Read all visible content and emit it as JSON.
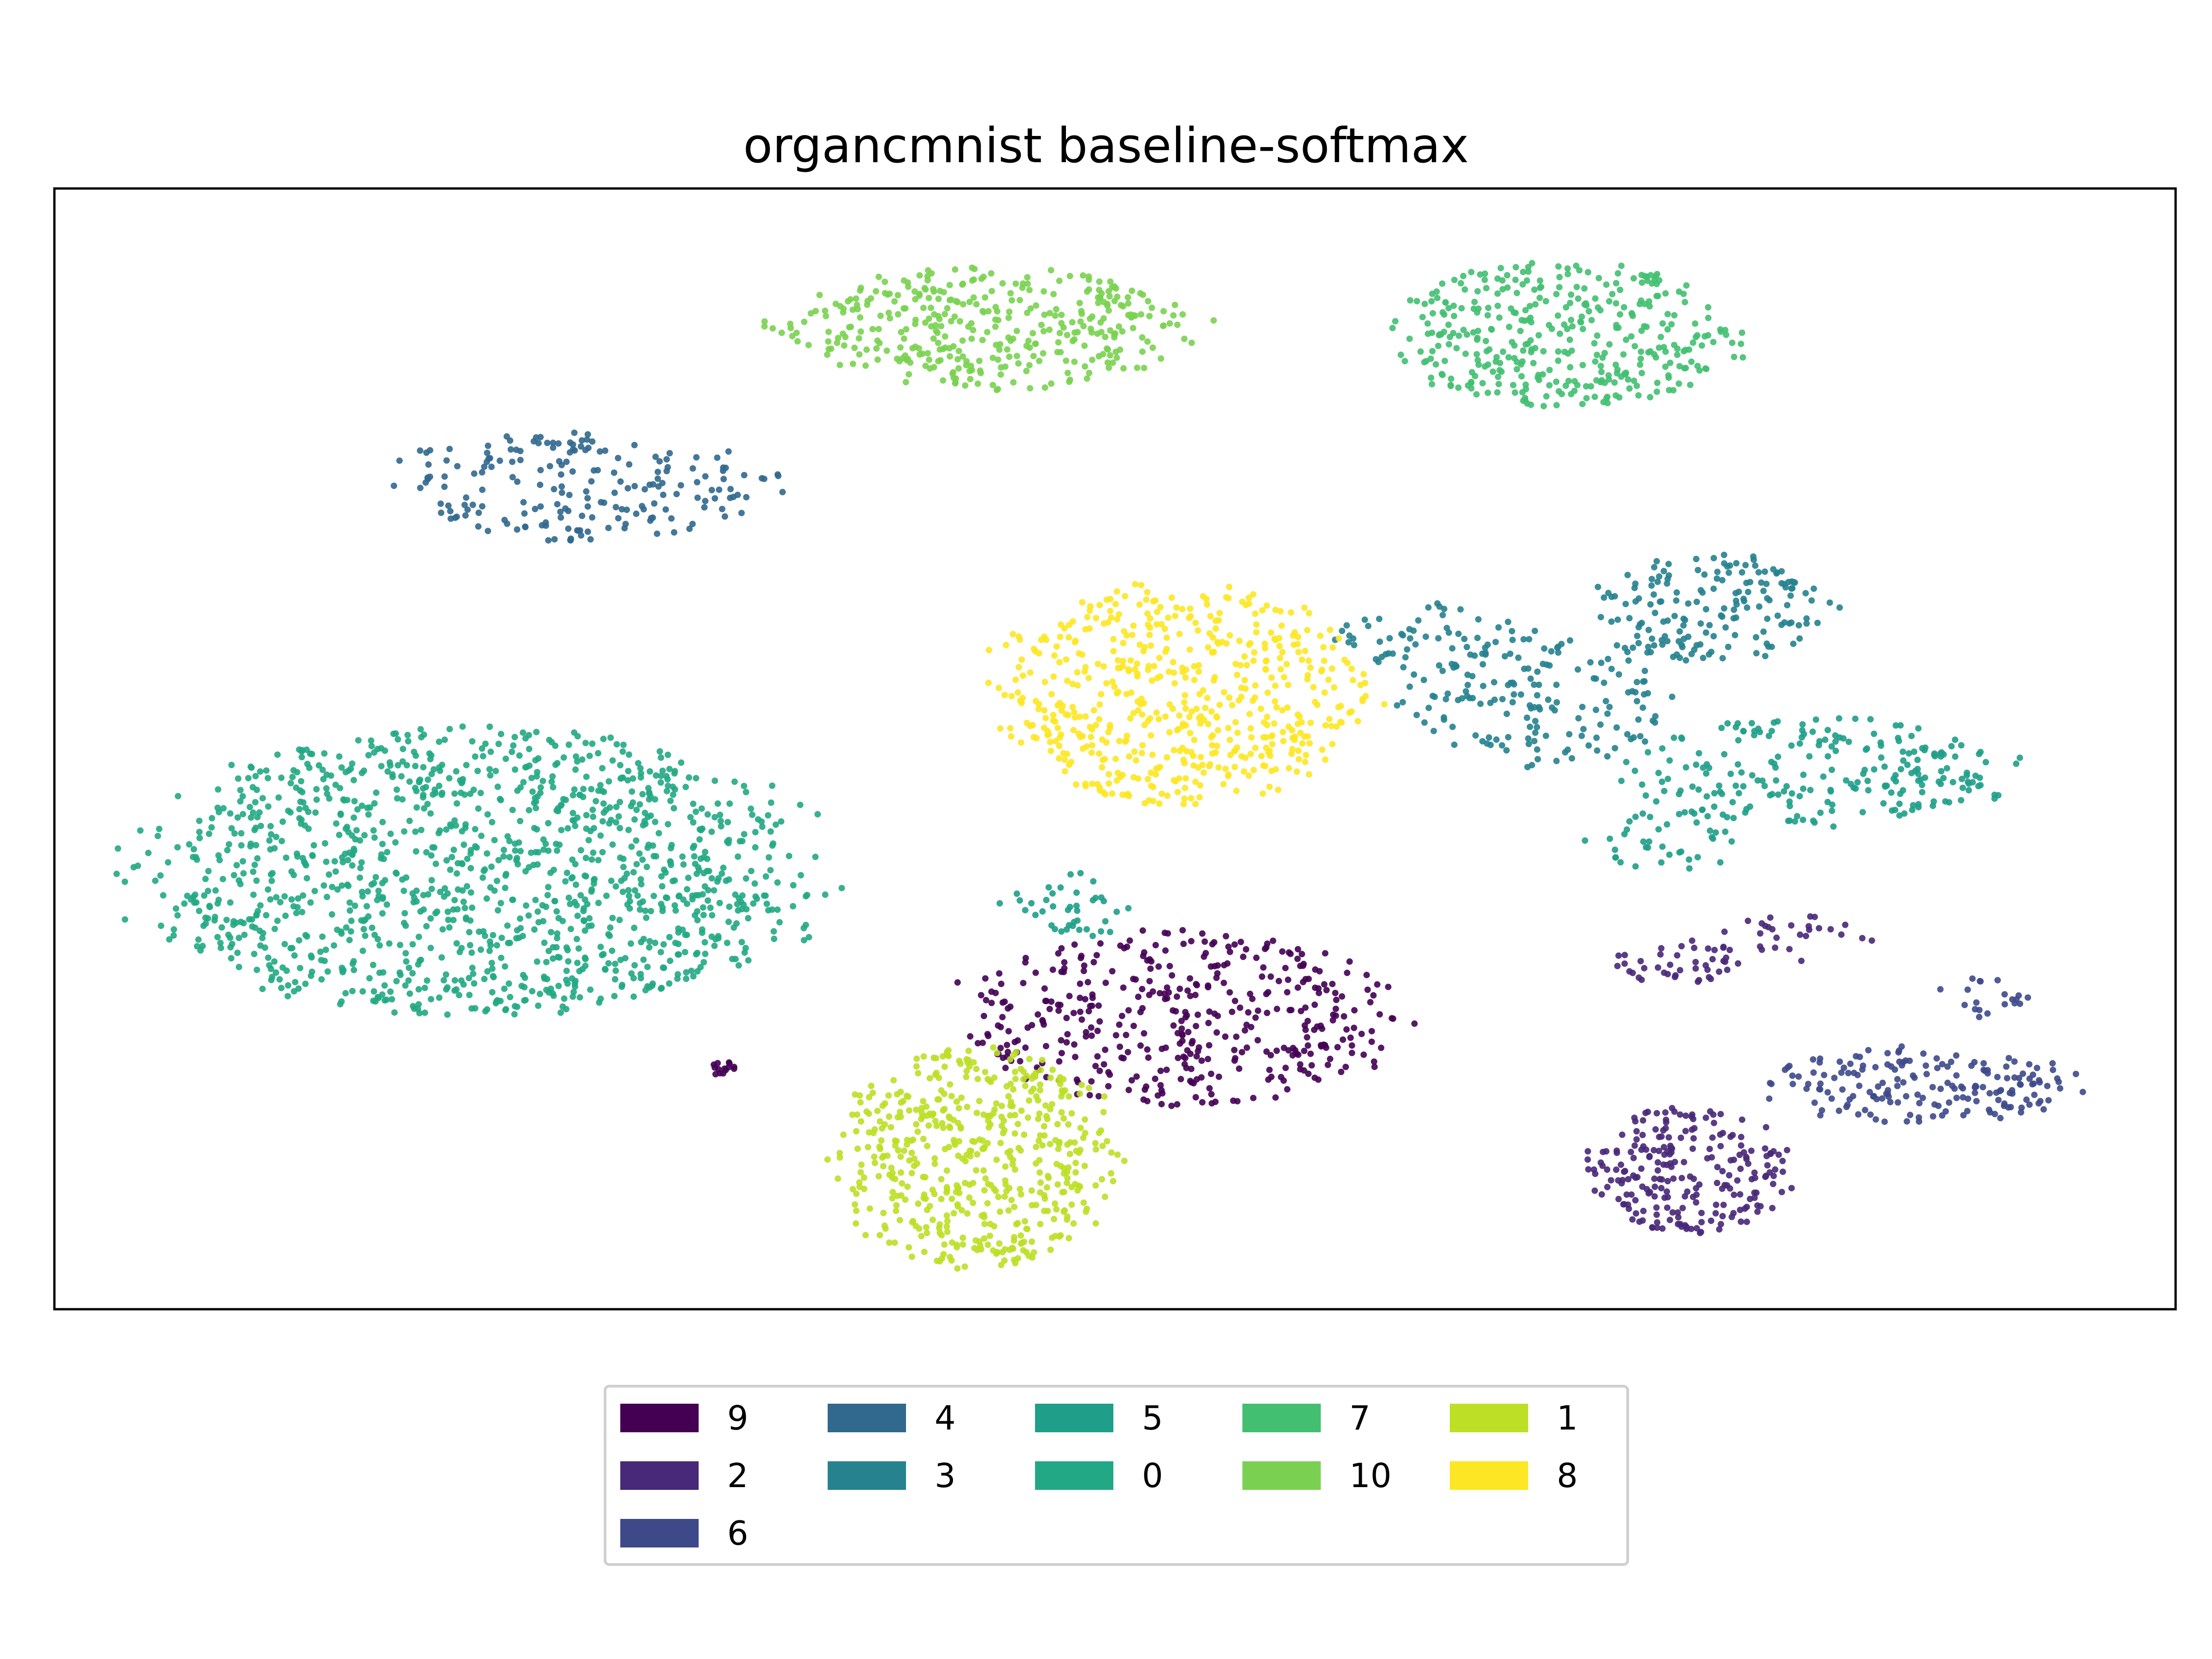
{
  "chart_data": {
    "type": "scatter",
    "title": "organcmnist baseline-softmax",
    "xlabel": "",
    "ylabel": "",
    "axes_ticks": false,
    "grid": false,
    "legend_placement": "bottom-center",
    "legend_columns": 5,
    "xlim": [
      0,
      100
    ],
    "ylim": [
      0,
      100
    ],
    "series": [
      {
        "name": "9",
        "color": "#440154",
        "clusters": [
          {
            "cx": 53,
            "cy": 26,
            "rx": 10,
            "ry": 8,
            "n": 420
          },
          {
            "cx": 31.5,
            "cy": 21.5,
            "rx": 0.8,
            "ry": 0.6,
            "n": 14
          }
        ]
      },
      {
        "name": "2",
        "color": "#482878",
        "clusters": [
          {
            "cx": 77,
            "cy": 12.5,
            "rx": 4.6,
            "ry": 5.8,
            "n": 230
          },
          {
            "cx": 76.5,
            "cy": 31,
            "rx": 3,
            "ry": 2,
            "n": 40
          },
          {
            "cx": 82,
            "cy": 33,
            "rx": 3.5,
            "ry": 2.2,
            "n": 30
          }
        ]
      },
      {
        "name": "6",
        "color": "#3e4989",
        "clusters": [
          {
            "cx": 88,
            "cy": 20,
            "rx": 7,
            "ry": 3.5,
            "n": 180
          },
          {
            "cx": 91,
            "cy": 28,
            "rx": 2,
            "ry": 2,
            "n": 20
          }
        ]
      },
      {
        "name": "4",
        "color": "#31688e",
        "clusters": [
          {
            "cx": 25,
            "cy": 73.5,
            "rx": 9,
            "ry": 5,
            "n": 200
          }
        ]
      },
      {
        "name": "3",
        "color": "#26828e",
        "clusters": [
          {
            "cx": 78,
            "cy": 62.5,
            "rx": 5.5,
            "ry": 5,
            "n": 170
          },
          {
            "cx": 70,
            "cy": 54,
            "rx": 6,
            "ry": 6,
            "n": 150
          },
          {
            "cx": 65,
            "cy": 60,
            "rx": 5,
            "ry": 3,
            "n": 60
          }
        ]
      },
      {
        "name": "5",
        "color": "#1f9e89",
        "clusters": [
          {
            "cx": 83,
            "cy": 48,
            "rx": 9,
            "ry": 5,
            "n": 230
          },
          {
            "cx": 48,
            "cy": 36,
            "rx": 3,
            "ry": 3,
            "n": 40
          },
          {
            "cx": 76,
            "cy": 42,
            "rx": 4,
            "ry": 3,
            "n": 40
          }
        ]
      },
      {
        "name": "0",
        "color": "#22a884",
        "clusters": [
          {
            "cx": 20,
            "cy": 39,
            "rx": 15.5,
            "ry": 13,
            "n": 1300
          }
        ]
      },
      {
        "name": "7",
        "color": "#43bf71",
        "clusters": [
          {
            "cx": 71,
            "cy": 87,
            "rx": 8,
            "ry": 6.5,
            "n": 380
          }
        ]
      },
      {
        "name": "10",
        "color": "#7ad151",
        "clusters": [
          {
            "cx": 44,
            "cy": 87.5,
            "rx": 9.5,
            "ry": 5.5,
            "n": 380
          }
        ]
      },
      {
        "name": "1",
        "color": "#bddf26",
        "clusters": [
          {
            "cx": 43.5,
            "cy": 13.5,
            "rx": 6.5,
            "ry": 10,
            "n": 520
          }
        ]
      },
      {
        "name": "8",
        "color": "#fde725",
        "clusters": [
          {
            "cx": 53,
            "cy": 55,
            "rx": 8.5,
            "ry": 10,
            "n": 560
          }
        ]
      }
    ]
  }
}
